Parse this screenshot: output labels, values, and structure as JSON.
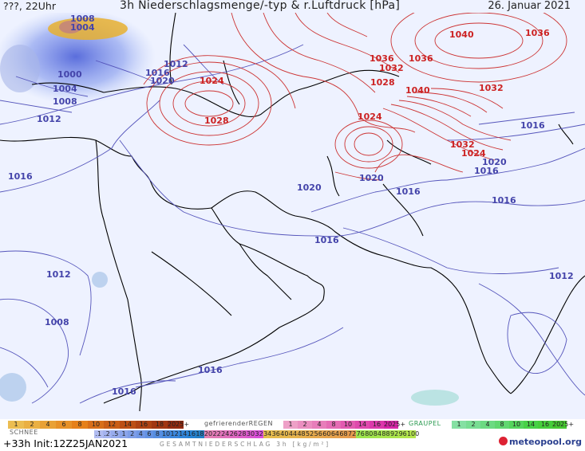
{
  "header": {
    "left": "???, 22Uhr",
    "title": "3h Niederschlagsmenge/-typ & r.Luftdruck [hPa]",
    "date": "26. Januar 2021"
  },
  "isobars": {
    "high_color": "#cc2222",
    "low_color": "#4444aa",
    "labels": [
      {
        "text": "1008",
        "kind": "low"
      },
      {
        "text": "1004",
        "kind": "low"
      },
      {
        "text": "1012",
        "kind": "low"
      },
      {
        "text": "1016",
        "kind": "low"
      },
      {
        "text": "1020",
        "kind": "low"
      },
      {
        "text": "1000",
        "kind": "low"
      },
      {
        "text": "1004",
        "kind": "low"
      },
      {
        "text": "1008",
        "kind": "low"
      },
      {
        "text": "1012",
        "kind": "low"
      },
      {
        "text": "1016",
        "kind": "low"
      },
      {
        "text": "1024",
        "kind": "high"
      },
      {
        "text": "1028",
        "kind": "high"
      },
      {
        "text": "1036",
        "kind": "high"
      },
      {
        "text": "1032",
        "kind": "high"
      },
      {
        "text": "1036",
        "kind": "high"
      },
      {
        "text": "1028",
        "kind": "high"
      },
      {
        "text": "1040",
        "kind": "high"
      },
      {
        "text": "1040",
        "kind": "high"
      },
      {
        "text": "1036",
        "kind": "high"
      },
      {
        "text": "1032",
        "kind": "high"
      },
      {
        "text": "1024",
        "kind": "high"
      },
      {
        "text": "1016",
        "kind": "low"
      },
      {
        "text": "1032",
        "kind": "high"
      },
      {
        "text": "1024",
        "kind": "high"
      },
      {
        "text": "1020",
        "kind": "low"
      },
      {
        "text": "1016",
        "kind": "low"
      },
      {
        "text": "1020",
        "kind": "low"
      },
      {
        "text": "1020",
        "kind": "low"
      },
      {
        "text": "1016",
        "kind": "low"
      },
      {
        "text": "1016",
        "kind": "low"
      },
      {
        "text": "1016",
        "kind": "low"
      },
      {
        "text": "1012",
        "kind": "low"
      },
      {
        "text": "1008",
        "kind": "low"
      },
      {
        "text": "1016",
        "kind": "low"
      },
      {
        "text": "1016",
        "kind": "low"
      },
      {
        "text": "1012",
        "kind": "low"
      }
    ]
  },
  "legend": {
    "snow_label": "SCHNEE",
    "snow_scale": [
      "1",
      "2",
      "4",
      "6",
      "8",
      "10",
      "12",
      "14",
      "16",
      "18",
      "2025+"
    ],
    "freezing_label": "gefrierenderREGEN",
    "freezing_scale": [
      "1",
      "2",
      "4",
      "8",
      "10",
      "14",
      "16",
      "2025+"
    ],
    "graupel_label": "GRAUPEL",
    "graupel_scale": [
      "1",
      "2",
      "4",
      "8",
      "10",
      "14",
      "16",
      "2025+"
    ],
    "total_scale": [
      ".1",
      ".2",
      ".5",
      "1",
      "2",
      "4",
      "6",
      "8",
      "10",
      "12",
      "14",
      "16",
      "18",
      "20",
      "22",
      "24",
      "26",
      "28",
      "30",
      "32",
      "34",
      "36",
      "40",
      "44",
      "48",
      "52",
      "56",
      "60",
      "64",
      "68",
      "72",
      "76",
      "80",
      "84",
      "88",
      "92",
      "96",
      "100"
    ],
    "total_label": "GESAMTNIEDERSCHLAG 3h [kg/m²]",
    "colors": {
      "snow": "#e8b030",
      "freezing": "#e050a0",
      "graupel": "#30c060",
      "total_blue": "#4050c0",
      "total_warm": "#e08020"
    }
  },
  "footer": {
    "run": "+33h Init:12Z25JAN2021",
    "brand": "meteopool.org"
  }
}
